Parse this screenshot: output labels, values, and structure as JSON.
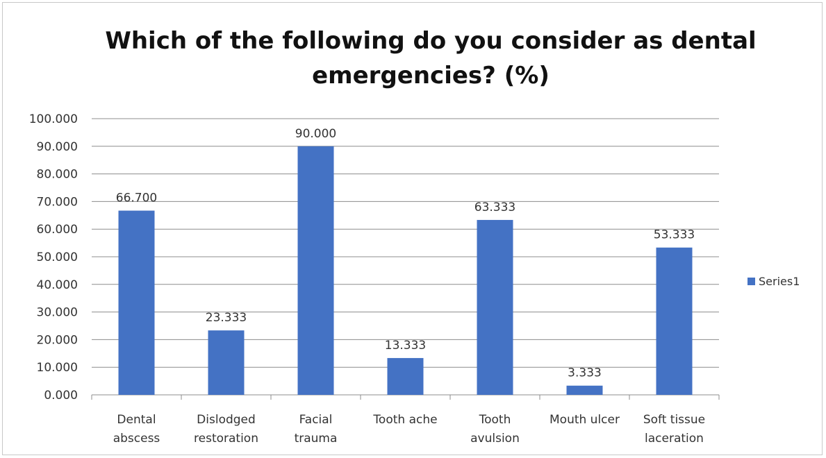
{
  "chart_data": {
    "type": "bar",
    "title": "Which of the following do you consider as dental emergencies? (%)",
    "categories": [
      [
        "Dental",
        "abscess"
      ],
      [
        "Dislodged",
        "restoration"
      ],
      [
        "Facial",
        "trauma"
      ],
      [
        "Tooth ache"
      ],
      [
        "Tooth",
        "avulsion"
      ],
      [
        "Mouth ulcer"
      ],
      [
        "Soft tissue",
        "laceration"
      ]
    ],
    "series": [
      {
        "name": "Series1",
        "values": [
          66.7,
          23.333,
          90.0,
          13.333,
          63.333,
          3.333,
          53.333
        ],
        "labels": [
          "66.700",
          "23.333",
          "90.000",
          "13.333",
          "63.333",
          "3.333",
          "53.333"
        ]
      }
    ],
    "ylim": [
      0,
      100
    ],
    "yticks": [
      "0.000",
      "10.000",
      "20.000",
      "30.000",
      "40.000",
      "50.000",
      "60.000",
      "70.000",
      "80.000",
      "90.000",
      "100.000"
    ],
    "grid": true,
    "legend_position": "right",
    "bar_color": "#4472c4"
  }
}
